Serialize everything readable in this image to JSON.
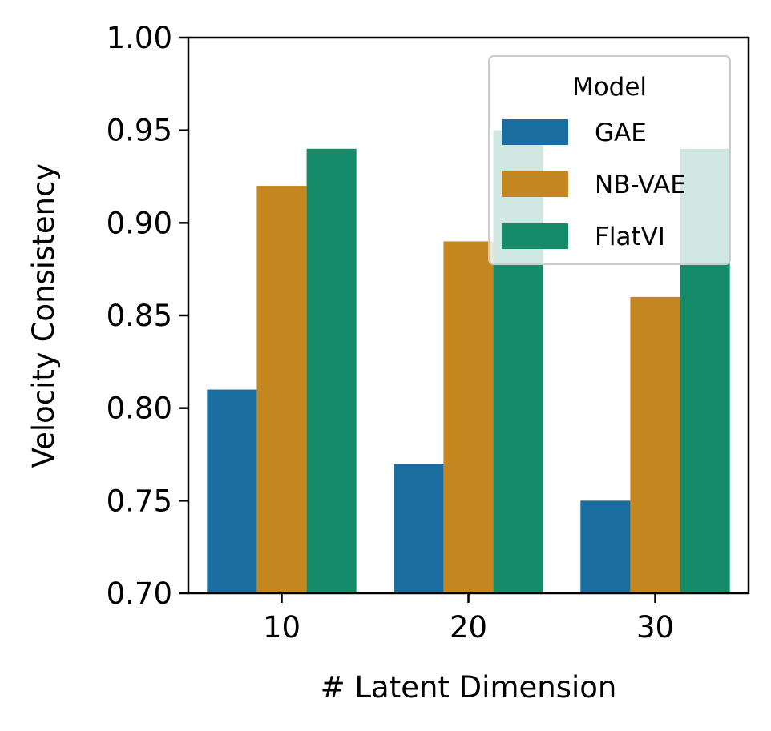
{
  "chart_data": {
    "type": "bar",
    "title": "",
    "xlabel": "# Latent Dimension",
    "ylabel": "Velocity Consistency",
    "categories": [
      "10",
      "20",
      "30"
    ],
    "series": [
      {
        "name": "GAE",
        "color": "#1a6e9f",
        "values": [
          0.81,
          0.77,
          0.75
        ]
      },
      {
        "name": "NB-VAE",
        "color": "#c4871f",
        "values": [
          0.92,
          0.89,
          0.86
        ]
      },
      {
        "name": "FlatVI",
        "color": "#168b6a",
        "values": [
          0.94,
          0.95,
          0.94
        ]
      }
    ],
    "ylim": [
      0.7,
      1.0
    ],
    "yticks": [
      "0.70",
      "0.75",
      "0.80",
      "0.85",
      "0.90",
      "0.95",
      "1.00"
    ],
    "legend": {
      "title": "Model",
      "placement": "top-right"
    },
    "grid": false
  }
}
